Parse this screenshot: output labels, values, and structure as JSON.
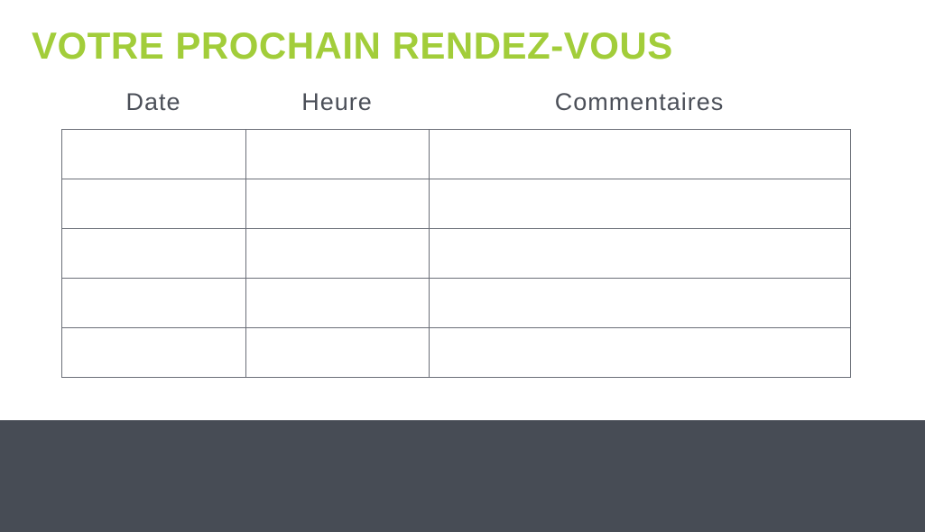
{
  "page": {
    "title": "VOTRE PROCHAIN RENDEZ-VOUS"
  },
  "colors": {
    "title": "#a2cd3a",
    "header_text": "#4b4f58",
    "table_border": "#6b6f78",
    "footer_bg": "#474c55",
    "page_bg": "#ffffff"
  },
  "table": {
    "headers": [
      "Date",
      "Heure",
      "Commentaires"
    ],
    "rows": [
      [
        "",
        "",
        ""
      ],
      [
        "",
        "",
        ""
      ],
      [
        "",
        "",
        ""
      ],
      [
        "",
        "",
        ""
      ],
      [
        "",
        "",
        ""
      ]
    ]
  }
}
